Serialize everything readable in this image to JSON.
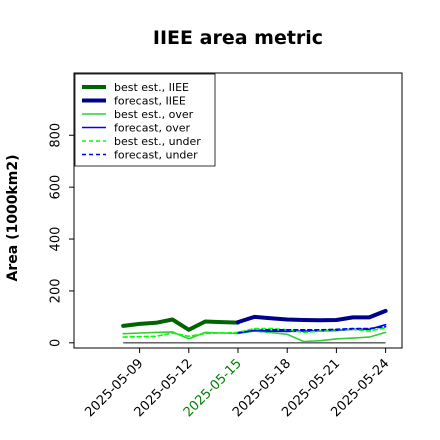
{
  "chart_data": {
    "type": "line",
    "title": "IIEE area metric",
    "xlabel": "",
    "ylabel": "Area (1000km2)",
    "ylim": [
      -20,
      1040
    ],
    "yticks": [
      0,
      200,
      400,
      600,
      800
    ],
    "xticks": [
      {
        "label": "2025-05-09",
        "date": "2025-05-09",
        "color": "#000000"
      },
      {
        "label": "2025-05-12",
        "date": "2025-05-12",
        "color": "#000000"
      },
      {
        "label": "2025-05-15",
        "date": "2025-05-15",
        "color": "#008000"
      },
      {
        "label": "2025-05-18",
        "date": "2025-05-18",
        "color": "#000000"
      },
      {
        "label": "2025-05-21",
        "date": "2025-05-21",
        "color": "#000000"
      },
      {
        "label": "2025-05-24",
        "date": "2025-05-24",
        "color": "#000000"
      }
    ],
    "xlim": [
      "2025-05-05",
      "2025-05-25"
    ],
    "grid": false,
    "legend_position": "top-left",
    "zero_line": {
      "value": 0,
      "color": "#555555"
    },
    "series": [
      {
        "name": "best est., IIEE",
        "color": "#006400",
        "style": "solid",
        "width": "thick",
        "x": [
          "2025-05-08",
          "2025-05-09",
          "2025-05-10",
          "2025-05-11",
          "2025-05-12",
          "2025-05-13",
          "2025-05-14",
          "2025-05-15"
        ],
        "y": [
          65,
          73,
          77,
          90,
          50,
          82,
          80,
          78
        ]
      },
      {
        "name": "forecast, IIEE",
        "color": "#00008b",
        "style": "solid",
        "width": "thick",
        "x": [
          "2025-05-15",
          "2025-05-16",
          "2025-05-17",
          "2025-05-18",
          "2025-05-19",
          "2025-05-20",
          "2025-05-21",
          "2025-05-22",
          "2025-05-23",
          "2025-05-24"
        ],
        "y": [
          80,
          100,
          95,
          90,
          88,
          87,
          88,
          98,
          98,
          123
        ]
      },
      {
        "name": "best est., over",
        "color": "#32cd32",
        "style": "solid",
        "width": "thin",
        "x": [
          "2025-05-08",
          "2025-05-09",
          "2025-05-10",
          "2025-05-11",
          "2025-05-12",
          "2025-05-13",
          "2025-05-14",
          "2025-05-15",
          "2025-05-16",
          "2025-05-17",
          "2025-05-18",
          "2025-05-19",
          "2025-05-20",
          "2025-05-21",
          "2025-05-22",
          "2025-05-23",
          "2025-05-24"
        ],
        "y": [
          35,
          38,
          40,
          42,
          15,
          40,
          38,
          36,
          45,
          40,
          33,
          5,
          8,
          15,
          18,
          22,
          40
        ]
      },
      {
        "name": "forecast, over",
        "color": "#0000ff",
        "style": "solid",
        "width": "thin",
        "x": [
          "2025-05-15",
          "2025-05-16",
          "2025-05-17",
          "2025-05-18",
          "2025-05-19",
          "2025-05-20",
          "2025-05-21",
          "2025-05-22",
          "2025-05-23",
          "2025-05-24"
        ],
        "y": [
          40,
          48,
          45,
          44,
          45,
          46,
          48,
          52,
          52,
          70
        ]
      },
      {
        "name": "best est., under",
        "color": "#00ff00",
        "style": "dashed",
        "width": "thin",
        "x": [
          "2025-05-08",
          "2025-05-09",
          "2025-05-10",
          "2025-05-11",
          "2025-05-12",
          "2025-05-13",
          "2025-05-14",
          "2025-05-15",
          "2025-05-16",
          "2025-05-17",
          "2025-05-18",
          "2025-05-19",
          "2025-05-20",
          "2025-05-21",
          "2025-05-22",
          "2025-05-23",
          "2025-05-24"
        ],
        "y": [
          22,
          24,
          25,
          38,
          25,
          36,
          38,
          40,
          55,
          55,
          50,
          40,
          45,
          50,
          52,
          45,
          58
        ]
      },
      {
        "name": "forecast, under",
        "color": "#0000ff",
        "style": "dashed",
        "width": "thin",
        "x": [
          "2025-05-15",
          "2025-05-16",
          "2025-05-17",
          "2025-05-18",
          "2025-05-19",
          "2025-05-20",
          "2025-05-21",
          "2025-05-22",
          "2025-05-23",
          "2025-05-24"
        ],
        "y": [
          38,
          48,
          50,
          50,
          50,
          50,
          52,
          55,
          55,
          62
        ]
      }
    ]
  }
}
